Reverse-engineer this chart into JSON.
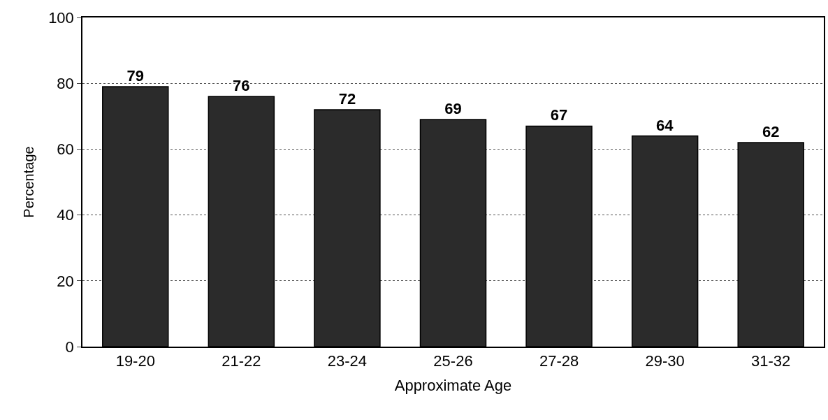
{
  "chart_data": {
    "type": "bar",
    "xlabel": "Approximate Age",
    "ylabel": "Percentage",
    "categories": [
      "19-20",
      "21-22",
      "23-24",
      "25-26",
      "27-28",
      "29-30",
      "31-32"
    ],
    "values": [
      79,
      76,
      72,
      69,
      67,
      64,
      62
    ],
    "color": "#2b2b2b",
    "ylim": [
      0,
      100
    ],
    "yticks": [
      0,
      20,
      40,
      60,
      80,
      100
    ],
    "grid": "y",
    "data_labels": true
  }
}
